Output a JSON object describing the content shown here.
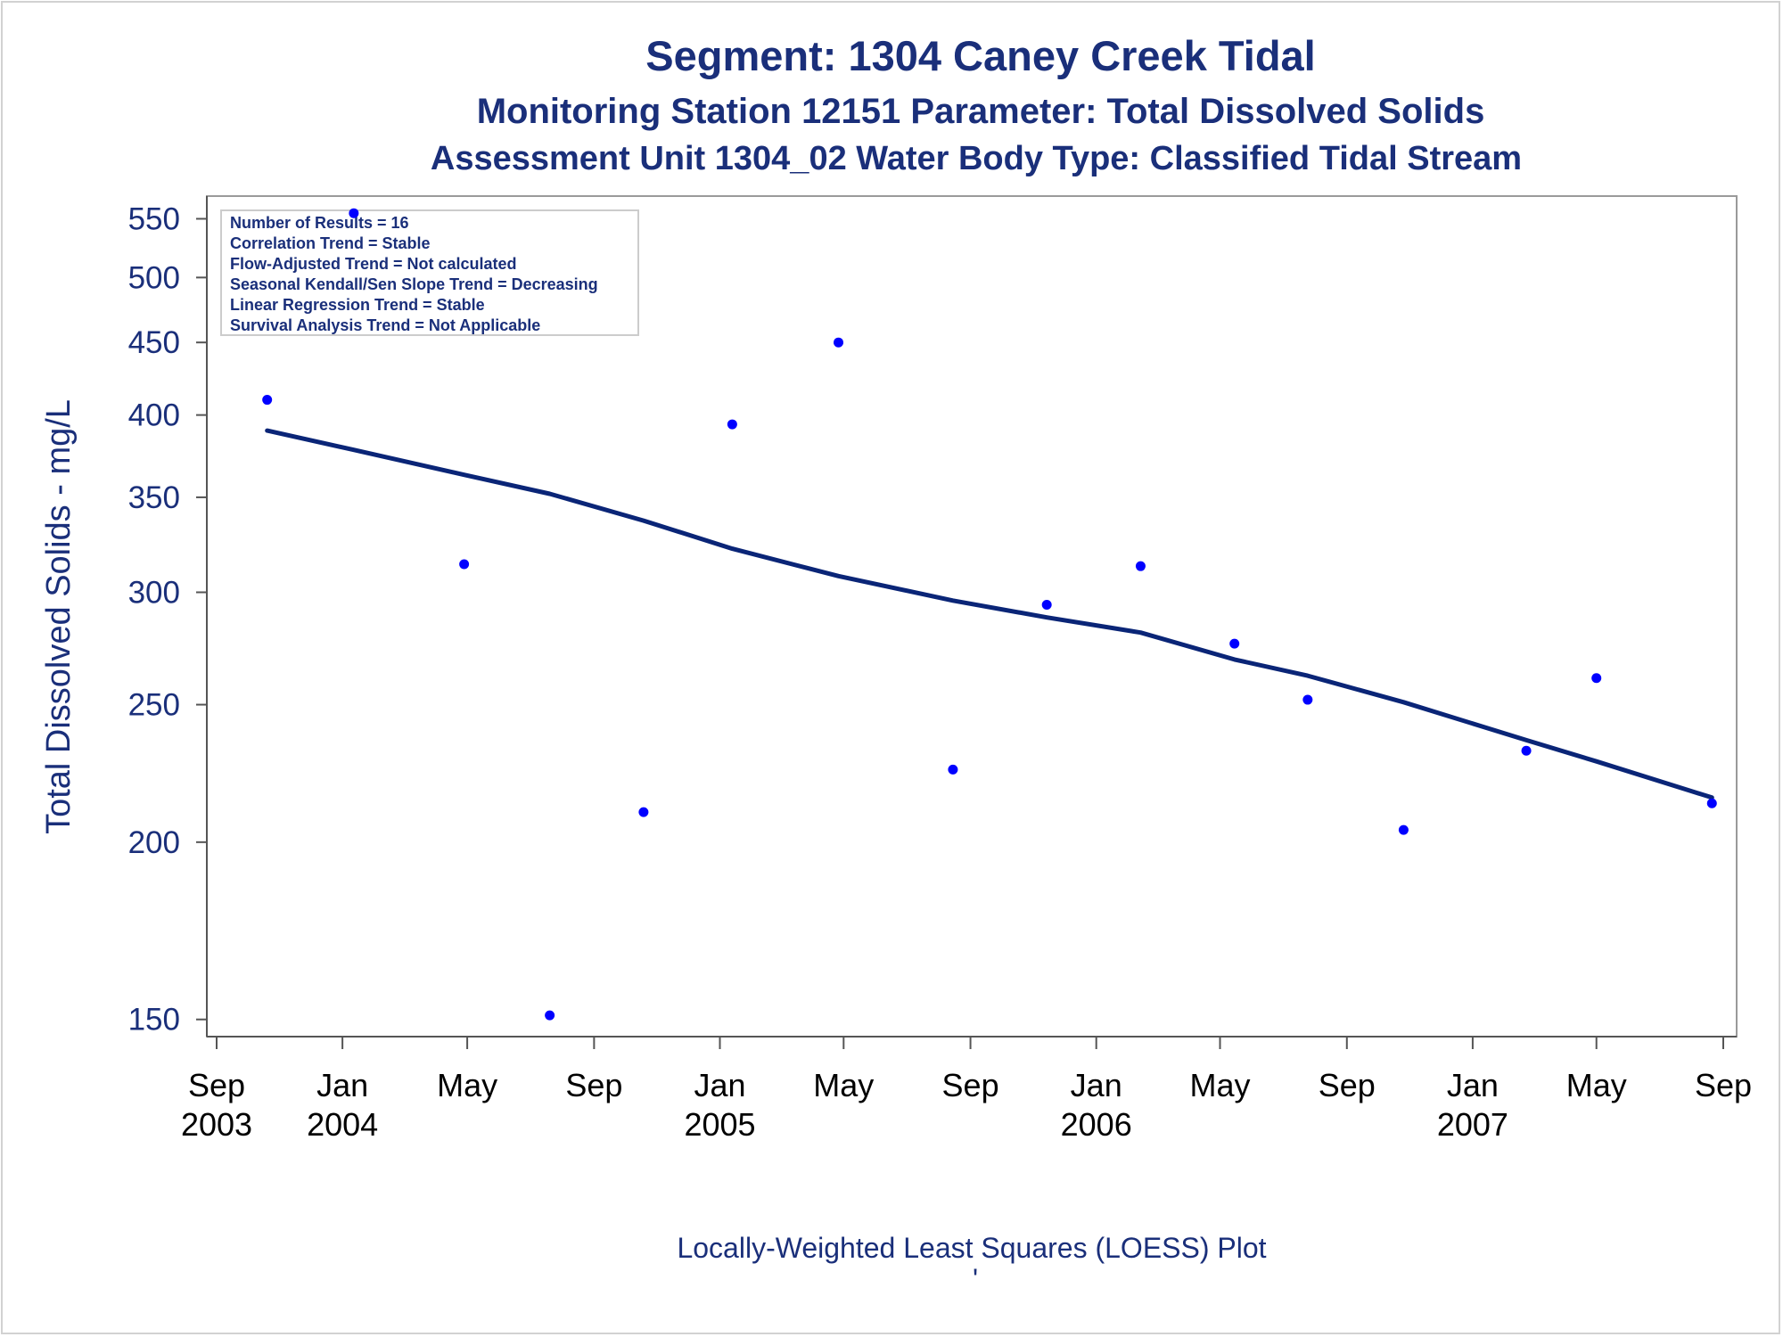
{
  "chart_data": {
    "type": "scatter",
    "title": "Segment: 1304  Caney Creek Tidal",
    "subtitle": "Monitoring Station 12151 Parameter: Total Dissolved Solids",
    "subtitle2": "Assessment Unit 1304_02   Water Body Type: Classified Tidal Stream",
    "xlabel": "",
    "ylabel": "Total Dissolved Solids - mg/L",
    "footnote": "Locally-Weighted Least Squares (LOESS) Plot",
    "footnote_mark": "'",
    "y_scale": "log",
    "ylim": [
      148,
      560
    ],
    "xlim": [
      "2003-09-01",
      "2007-09-01"
    ],
    "grid": false,
    "y_ticks": [
      150,
      200,
      250,
      300,
      350,
      400,
      450,
      500,
      550
    ],
    "x_ticks": [
      {
        "date": "2003-09-01",
        "month": "Sep",
        "year": "2003"
      },
      {
        "date": "2004-01-01",
        "month": "Jan",
        "year": "2004"
      },
      {
        "date": "2004-05-01",
        "month": "May",
        "year": ""
      },
      {
        "date": "2004-09-01",
        "month": "Sep",
        "year": ""
      },
      {
        "date": "2005-01-01",
        "month": "Jan",
        "year": "2005"
      },
      {
        "date": "2005-05-01",
        "month": "May",
        "year": ""
      },
      {
        "date": "2005-09-01",
        "month": "Sep",
        "year": ""
      },
      {
        "date": "2006-01-01",
        "month": "Jan",
        "year": "2006"
      },
      {
        "date": "2006-05-01",
        "month": "May",
        "year": ""
      },
      {
        "date": "2006-09-01",
        "month": "Sep",
        "year": ""
      },
      {
        "date": "2007-01-01",
        "month": "Jan",
        "year": "2007"
      },
      {
        "date": "2007-05-01",
        "month": "May",
        "year": ""
      },
      {
        "date": "2007-09-01",
        "month": "Sep",
        "year": ""
      }
    ],
    "points": [
      {
        "x": "2003-10-20",
        "y": 410
      },
      {
        "x": "2004-01-12",
        "y": 555
      },
      {
        "x": "2004-04-28",
        "y": 314
      },
      {
        "x": "2004-07-20",
        "y": 151
      },
      {
        "x": "2004-10-19",
        "y": 210
      },
      {
        "x": "2005-01-13",
        "y": 394
      },
      {
        "x": "2005-04-26",
        "y": 450
      },
      {
        "x": "2005-08-15",
        "y": 225
      },
      {
        "x": "2005-11-14",
        "y": 294
      },
      {
        "x": "2006-02-13",
        "y": 313
      },
      {
        "x": "2006-05-15",
        "y": 276
      },
      {
        "x": "2006-07-25",
        "y": 252
      },
      {
        "x": "2006-10-26",
        "y": 204
      },
      {
        "x": "2007-02-22",
        "y": 232
      },
      {
        "x": "2007-05-01",
        "y": 261
      },
      {
        "x": "2007-08-21",
        "y": 213
      }
    ],
    "loess": [
      {
        "x": "2003-10-20",
        "y": 390
      },
      {
        "x": "2004-01-12",
        "y": 378
      },
      {
        "x": "2004-04-28",
        "y": 363
      },
      {
        "x": "2004-07-20",
        "y": 352
      },
      {
        "x": "2004-10-19",
        "y": 337
      },
      {
        "x": "2005-01-13",
        "y": 322
      },
      {
        "x": "2005-04-26",
        "y": 308
      },
      {
        "x": "2005-08-15",
        "y": 296
      },
      {
        "x": "2005-11-14",
        "y": 288
      },
      {
        "x": "2006-02-13",
        "y": 281
      },
      {
        "x": "2006-05-15",
        "y": 269
      },
      {
        "x": "2006-07-25",
        "y": 262
      },
      {
        "x": "2006-10-26",
        "y": 251
      },
      {
        "x": "2007-02-22",
        "y": 236
      },
      {
        "x": "2007-05-01",
        "y": 228
      },
      {
        "x": "2007-08-21",
        "y": 215
      }
    ],
    "stats_box": [
      "Number of Results = 16",
      "Correlation Trend = Stable",
      "Flow-Adjusted Trend = Not calculated",
      "Seasonal Kendall/Sen Slope Trend = Decreasing",
      "Linear Regression Trend = Stable",
      "Survival Analysis Trend = Not Applicable"
    ],
    "colors": {
      "text": "#1a2f7a",
      "points": "#0000ff",
      "line": "#0a2577",
      "frame": "#9a9a9a"
    }
  }
}
